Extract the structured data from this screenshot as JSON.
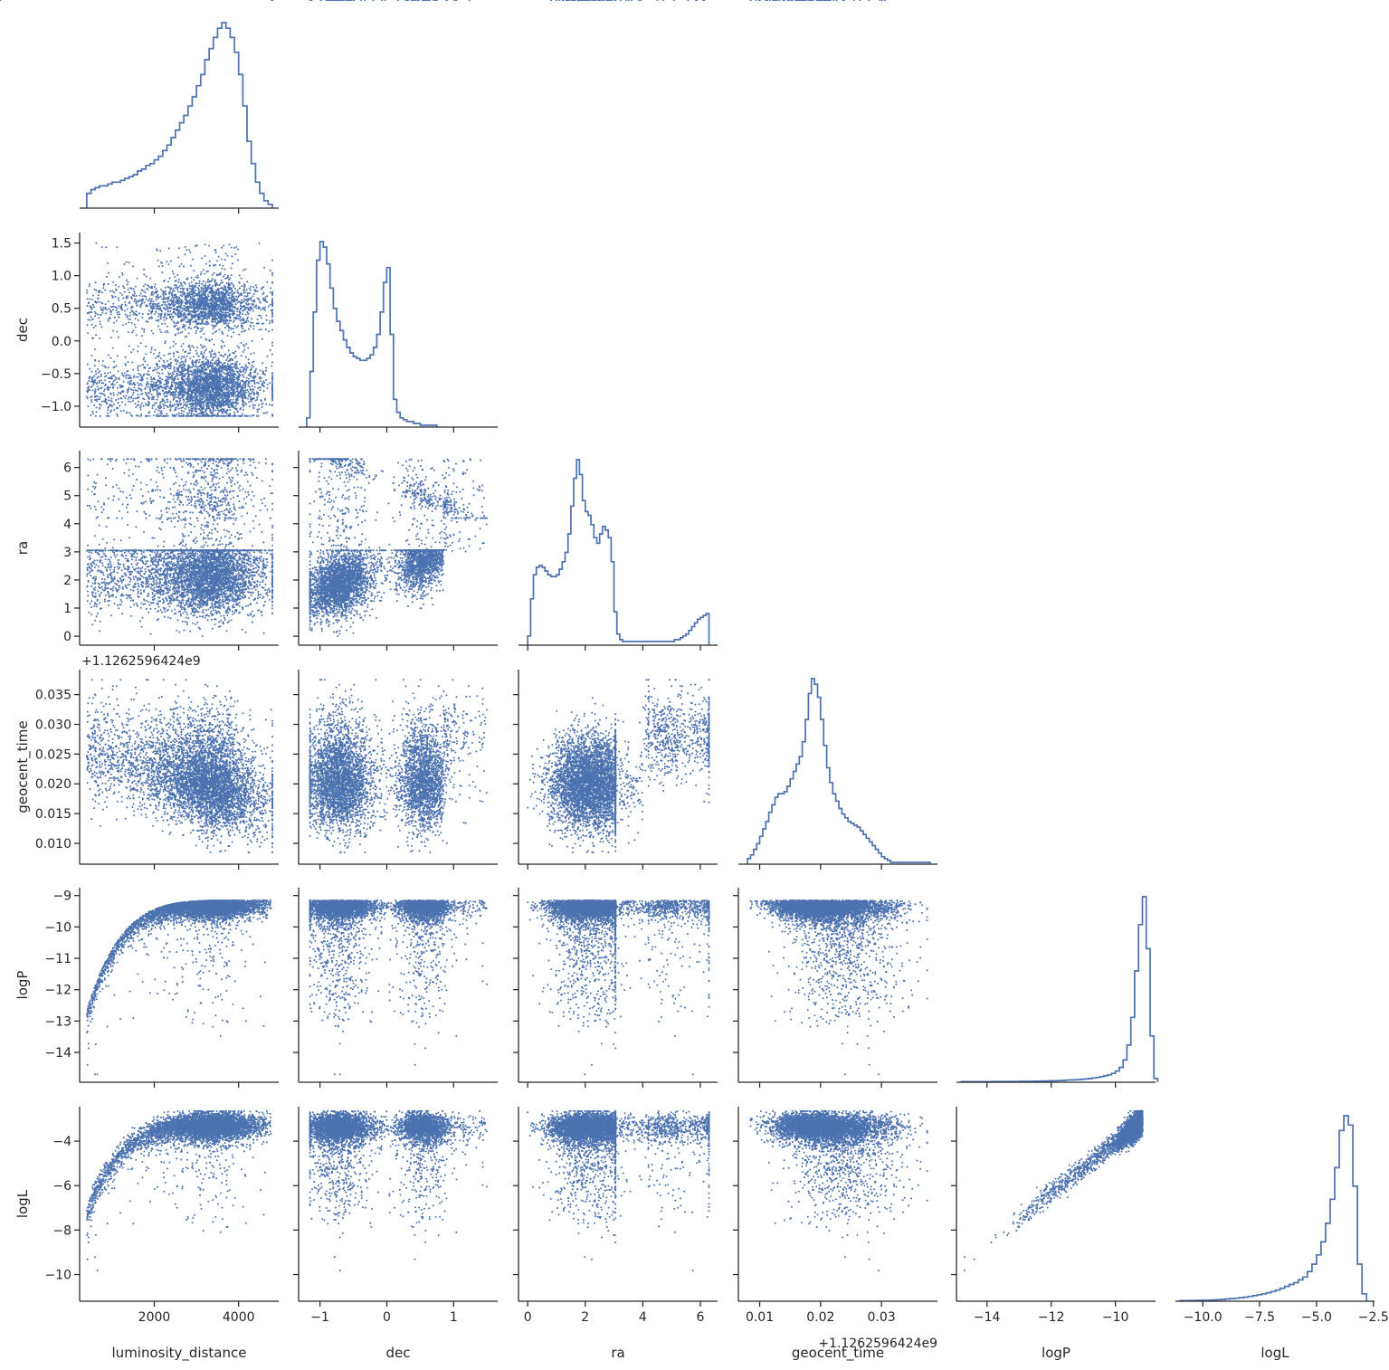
{
  "chart_data": {
    "type": "scatter",
    "layout": "corner-pairplot",
    "variables": [
      "luminosity_distance",
      "dec",
      "ra",
      "geocent_time",
      "logP",
      "logL"
    ],
    "color": "#4c72b0",
    "offset_text": "+1.1262596424e9",
    "axes": {
      "luminosity_distance": {
        "range": [
          230,
          4950
        ],
        "ticks": [
          2000,
          4000
        ],
        "tick_labels": [
          "2000",
          "4000"
        ]
      },
      "dec": {
        "range": [
          -1.32,
          1.66
        ],
        "ticks": [
          -1.0,
          -0.5,
          0.0,
          0.5,
          1.0,
          1.5
        ],
        "tick_labels": [
          "−1.0",
          "−0.5",
          "0.0",
          "0.5",
          "1.0",
          "1.5"
        ],
        "x_ticks": [
          -1,
          0,
          1
        ],
        "x_tick_labels": [
          "−1",
          "0",
          "1"
        ]
      },
      "ra": {
        "range": [
          -0.32,
          6.6
        ],
        "ticks": [
          0,
          1,
          2,
          3,
          4,
          5,
          6
        ],
        "tick_labels": [
          "0",
          "1",
          "2",
          "3",
          "4",
          "5",
          "6"
        ],
        "x_ticks": [
          0,
          2,
          4,
          6
        ],
        "x_tick_labels": [
          "0",
          "2",
          "4",
          "6"
        ]
      },
      "geocent_time": {
        "range": [
          0.0065,
          0.0392
        ],
        "ticks": [
          0.01,
          0.015,
          0.02,
          0.025,
          0.03,
          0.035
        ],
        "tick_labels": [
          "0.010",
          "0.015",
          "0.020",
          "0.025",
          "0.030",
          "0.035"
        ],
        "x_ticks": [
          0.01,
          0.02,
          0.03
        ],
        "x_tick_labels": [
          "0.01",
          "0.02",
          "0.03"
        ]
      },
      "logP": {
        "range": [
          -14.95,
          -8.75
        ],
        "ticks": [
          -14,
          -13,
          -12,
          -11,
          -10,
          -9
        ],
        "tick_labels": [
          "−14",
          "−13",
          "−12",
          "−11",
          "−10",
          "−9"
        ],
        "x_ticks": [
          -14,
          -12,
          -10
        ],
        "x_tick_labels": [
          "−14",
          "−12",
          "−10"
        ]
      },
      "logL": {
        "range": [
          -11.2,
          -2.45
        ],
        "ticks": [
          -10,
          -8,
          -6,
          -4
        ],
        "tick_labels": [
          "−10",
          "−8",
          "−6",
          "−4"
        ],
        "x_ticks": [
          -10.0,
          -7.5,
          -5.0,
          -2.5
        ],
        "x_tick_labels": [
          "−10.0",
          "−7.5",
          "−5.0",
          "−2.5"
        ]
      }
    },
    "histograms": {
      "luminosity_distance": {
        "edges_start": 400,
        "bin_width": 100,
        "counts": [
          0.08,
          0.1,
          0.11,
          0.12,
          0.12,
          0.13,
          0.14,
          0.14,
          0.15,
          0.16,
          0.17,
          0.18,
          0.2,
          0.21,
          0.23,
          0.24,
          0.26,
          0.28,
          0.31,
          0.34,
          0.38,
          0.42,
          0.46,
          0.5,
          0.55,
          0.6,
          0.66,
          0.72,
          0.8,
          0.86,
          0.92,
          0.97,
          1.0,
          0.97,
          0.92,
          0.84,
          0.72,
          0.55,
          0.36,
          0.24,
          0.14,
          0.08,
          0.04,
          0.02
        ]
      },
      "dec": {
        "edges_start": -1.2,
        "bin_width": 0.05,
        "counts": [
          0.05,
          0.3,
          0.62,
          0.9,
          1.0,
          0.97,
          0.88,
          0.75,
          0.64,
          0.57,
          0.52,
          0.47,
          0.43,
          0.4,
          0.38,
          0.37,
          0.36,
          0.36,
          0.37,
          0.39,
          0.43,
          0.5,
          0.62,
          0.78,
          0.86,
          0.5,
          0.15,
          0.08,
          0.05,
          0.04,
          0.03,
          0.03,
          0.02,
          0.02,
          0.01,
          0.01,
          0.01,
          0.01,
          0.01
        ]
      },
      "ra": {
        "edges_start": 0.0,
        "bin_width": 0.1,
        "counts": [
          0.05,
          0.25,
          0.38,
          0.42,
          0.43,
          0.42,
          0.4,
          0.38,
          0.37,
          0.37,
          0.38,
          0.41,
          0.45,
          0.5,
          0.6,
          0.75,
          0.9,
          1.0,
          0.92,
          0.78,
          0.72,
          0.7,
          0.65,
          0.58,
          0.55,
          0.6,
          0.64,
          0.62,
          0.58,
          0.45,
          0.18,
          0.06,
          0.03,
          0.02,
          0.02,
          0.02,
          0.02,
          0.02,
          0.02,
          0.02,
          0.02,
          0.02,
          0.02,
          0.02,
          0.02,
          0.02,
          0.02,
          0.02,
          0.02,
          0.02,
          0.02,
          0.03,
          0.03,
          0.04,
          0.05,
          0.06,
          0.08,
          0.1,
          0.12,
          0.14,
          0.15,
          0.16,
          0.17
        ]
      },
      "geocent_time": {
        "edges_start": 0.008,
        "bin_width": 0.0005,
        "counts": [
          0.03,
          0.05,
          0.08,
          0.11,
          0.15,
          0.19,
          0.23,
          0.28,
          0.32,
          0.36,
          0.38,
          0.38,
          0.39,
          0.42,
          0.46,
          0.5,
          0.54,
          0.58,
          0.66,
          0.78,
          0.92,
          1.0,
          0.97,
          0.9,
          0.78,
          0.64,
          0.52,
          0.44,
          0.38,
          0.34,
          0.3,
          0.27,
          0.25,
          0.23,
          0.22,
          0.21,
          0.2,
          0.18,
          0.16,
          0.14,
          0.12,
          0.1,
          0.08,
          0.06,
          0.04,
          0.03,
          0.02,
          0.01,
          0.01,
          0.01,
          0.01,
          0.01,
          0.01,
          0.01,
          0.01,
          0.01,
          0.01,
          0.01,
          0.01,
          0.01
        ]
      },
      "logP": {
        "edges_start": -14.8,
        "bin_width": 0.12,
        "counts": [
          0.003,
          0.003,
          0.003,
          0.003,
          0.003,
          0.003,
          0.003,
          0.003,
          0.004,
          0.004,
          0.004,
          0.004,
          0.004,
          0.004,
          0.004,
          0.005,
          0.005,
          0.005,
          0.005,
          0.006,
          0.006,
          0.007,
          0.007,
          0.008,
          0.008,
          0.009,
          0.01,
          0.011,
          0.012,
          0.013,
          0.014,
          0.016,
          0.018,
          0.02,
          0.023,
          0.026,
          0.03,
          0.035,
          0.04,
          0.048,
          0.06,
          0.08,
          0.12,
          0.2,
          0.35,
          0.6,
          0.85,
          1.0,
          0.72,
          0.25,
          0.02
        ]
      },
      "logL": {
        "edges_start": -11.0,
        "bin_width": 0.2,
        "counts": [
          0.003,
          0.003,
          0.004,
          0.004,
          0.005,
          0.005,
          0.006,
          0.007,
          0.008,
          0.01,
          0.012,
          0.014,
          0.016,
          0.019,
          0.022,
          0.026,
          0.03,
          0.035,
          0.04,
          0.046,
          0.052,
          0.06,
          0.07,
          0.08,
          0.09,
          0.1,
          0.115,
          0.13,
          0.16,
          0.2,
          0.25,
          0.32,
          0.42,
          0.55,
          0.72,
          0.92,
          1.0,
          0.95,
          0.62,
          0.2,
          0.04
        ]
      }
    },
    "note_scatter": "Each off-diagonal panel is a scatter of posterior samples of the row variable (y) against the column variable (x)."
  }
}
